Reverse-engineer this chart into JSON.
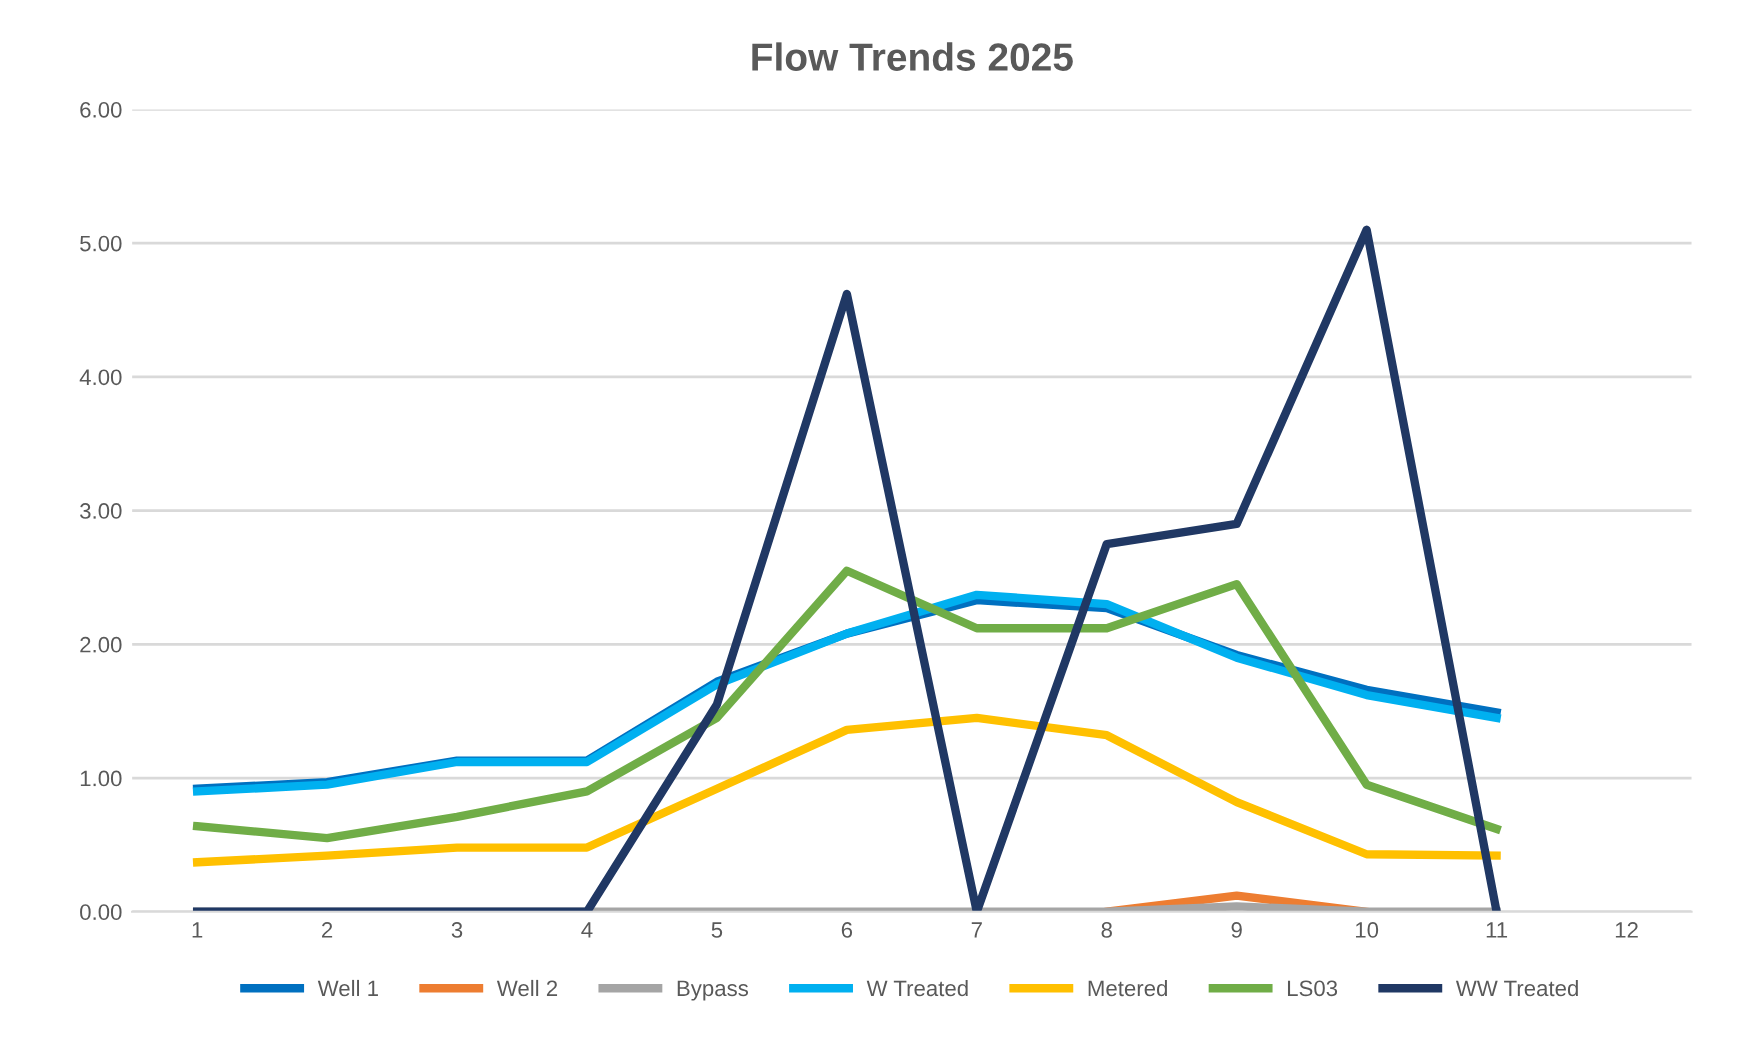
{
  "chart_data": {
    "type": "line",
    "title": "Flow Trends 2025",
    "categories": [
      "1",
      "2",
      "3",
      "4",
      "5",
      "6",
      "7",
      "8",
      "9",
      "10",
      "11",
      "12"
    ],
    "series": [
      {
        "name": "Well 1",
        "color": "#0070c0",
        "values": [
          0.92,
          0.97,
          1.13,
          1.13,
          1.72,
          2.08,
          2.33,
          2.27,
          1.92,
          1.66,
          1.49,
          null
        ]
      },
      {
        "name": "Well 2",
        "color": "#ed7d31",
        "values": [
          null,
          null,
          null,
          null,
          null,
          null,
          null,
          0,
          0.12,
          0,
          null,
          null
        ]
      },
      {
        "name": "Bypass",
        "color": "#a5a5a5",
        "values": [
          0,
          0,
          0,
          0,
          0,
          0,
          0,
          0,
          0.04,
          0,
          0,
          null
        ]
      },
      {
        "name": "W Treated",
        "color": "#00b0f0",
        "values": [
          0.9,
          0.95,
          1.12,
          1.12,
          1.7,
          2.08,
          2.37,
          2.3,
          1.9,
          1.62,
          1.45,
          null
        ]
      },
      {
        "name": "Metered",
        "color": "#ffc000",
        "values": [
          0.37,
          0.42,
          0.48,
          0.48,
          0.92,
          1.36,
          1.45,
          1.32,
          0.82,
          0.43,
          0.42,
          null
        ]
      },
      {
        "name": "LS03",
        "color": "#70ad47",
        "values": [
          0.64,
          0.55,
          0.71,
          0.9,
          1.45,
          2.55,
          2.12,
          2.12,
          2.45,
          0.95,
          0.62,
          null
        ]
      },
      {
        "name": "WW Treated",
        "color": "#203864",
        "values": [
          0,
          0,
          0,
          0,
          1.55,
          4.62,
          0,
          2.75,
          2.9,
          5.1,
          0,
          null
        ]
      }
    ],
    "ylim": [
      0,
      6
    ],
    "yticks": [
      {
        "value": 0,
        "label": "0.00"
      },
      {
        "value": 1,
        "label": "1.00"
      },
      {
        "value": 2,
        "label": "2.00"
      },
      {
        "value": 3,
        "label": "3.00"
      },
      {
        "value": 4,
        "label": "4.00"
      },
      {
        "value": 5,
        "label": "5.00"
      },
      {
        "value": 6,
        "label": "6.00"
      }
    ],
    "grid": "y",
    "legend": "bottom",
    "marker": "none",
    "line_style": "solid"
  }
}
